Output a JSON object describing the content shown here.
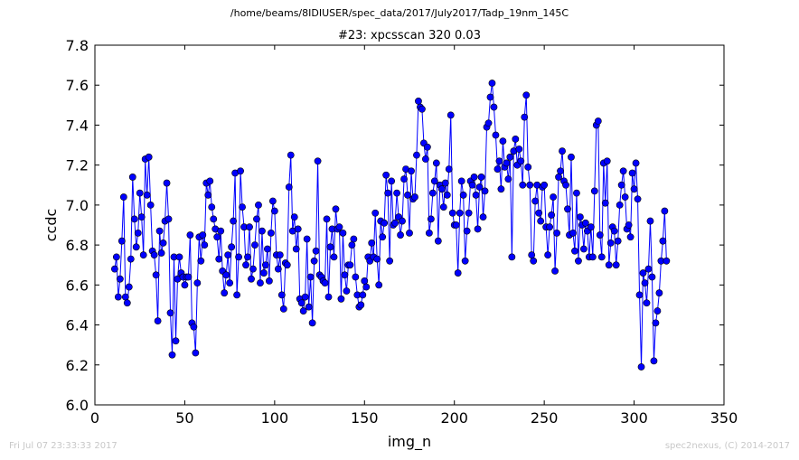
{
  "suptitle": "/home/beams/8IDIUSER/spec_data/2017/July2017/Tadp_19nm_145C",
  "footer": {
    "left": "Fri Jul 07 23:33:33 2017",
    "right": "spec2nexus, (C) 2014-2017"
  },
  "colors": {
    "series": "#0000ff",
    "axes": "#000000",
    "footer": "#c8c8c8"
  },
  "chart_data": {
    "type": "line",
    "title": "#23: xpcsscan 320 0.03",
    "xlabel": "img_n",
    "ylabel": "ccdc",
    "xlim": [
      0,
      350
    ],
    "ylim": [
      6.0,
      7.8
    ],
    "xticks": [
      "0",
      "50",
      "100",
      "150",
      "200",
      "250",
      "300",
      "350"
    ],
    "yticks": [
      "6.0",
      "6.2",
      "6.4",
      "6.6",
      "6.8",
      "7.0",
      "7.2",
      "7.4",
      "7.6",
      "7.8"
    ],
    "grid": false,
    "marker": "circle",
    "x_start": 11,
    "x_step": 1,
    "series": [
      {
        "y": [
          6.68,
          6.74,
          6.54,
          6.63,
          6.82,
          7.04,
          6.54,
          6.51,
          6.59,
          6.73,
          7.14,
          6.93,
          6.79,
          6.86,
          7.06,
          6.94,
          6.75,
          7.23,
          7.05,
          7.24,
          7.0,
          6.77,
          6.75,
          6.65,
          6.42,
          6.87,
          6.76,
          6.81,
          6.92,
          7.11,
          6.93,
          6.46,
          6.25,
          6.74,
          6.32,
          6.63,
          6.74,
          6.66,
          6.64,
          6.6,
          6.64,
          6.64,
          6.85,
          6.41,
          6.39,
          6.26,
          6.61,
          6.84,
          6.72,
          6.85,
          6.8,
          7.11,
          7.05,
          7.12,
          6.99,
          6.93,
          6.88,
          6.84,
          6.73,
          6.87,
          6.67,
          6.56,
          6.65,
          6.75,
          6.61,
          6.79,
          6.92,
          7.16,
          6.55,
          6.74,
          7.17,
          6.99,
          6.89,
          6.7,
          6.74,
          6.89,
          6.63,
          6.68,
          6.8,
          6.93,
          7.0,
          6.61,
          6.87,
          6.66,
          6.7,
          6.78,
          6.62,
          6.86,
          7.02,
          6.97,
          6.75,
          6.68,
          6.75,
          6.55,
          6.48,
          6.71,
          6.7,
          7.09,
          7.25,
          6.87,
          6.94,
          6.78,
          6.88,
          6.53,
          6.51,
          6.47,
          6.54,
          6.83,
          6.49,
          6.64,
          6.41,
          6.72,
          6.77,
          7.22,
          6.65,
          6.64,
          6.62,
          6.61,
          6.93,
          6.54,
          6.79,
          6.88,
          6.74,
          6.98,
          6.88,
          6.89,
          6.53,
          6.86,
          6.65,
          6.57,
          6.7,
          6.7,
          6.8,
          6.83,
          6.64,
          6.55,
          6.49,
          6.5,
          6.55,
          6.62,
          6.59,
          6.74,
          6.72,
          6.81,
          6.74,
          6.96,
          6.73,
          6.6,
          6.92,
          6.84,
          6.91,
          7.15,
          7.06,
          6.72,
          7.12,
          6.9,
          6.91,
          7.06,
          6.94,
          6.85,
          6.92,
          7.13,
          7.18,
          7.05,
          6.86,
          7.17,
          7.03,
          7.04,
          7.25,
          7.52,
          7.49,
          7.48,
          7.31,
          7.23,
          7.29,
          6.86,
          6.93,
          7.06,
          7.12,
          7.21,
          6.82,
          7.1,
          7.08,
          6.99,
          7.11,
          7.05,
          7.18,
          7.45,
          6.96,
          6.9,
          6.9,
          6.66,
          6.96,
          7.12,
          7.05,
          6.72,
          6.87,
          6.96,
          7.12,
          7.1,
          7.14,
          7.05,
          6.88,
          7.09,
          7.14,
          6.94,
          7.07,
          7.39,
          7.41,
          7.54,
          7.61,
          7.49,
          7.35,
          7.18,
          7.22,
          7.08,
          7.32,
          7.19,
          7.21,
          7.13,
          7.24,
          6.74,
          7.27,
          7.33,
          7.2,
          7.28,
          7.22,
          7.1,
          7.44,
          7.55,
          7.19,
          7.1,
          6.75,
          6.72,
          7.02,
          7.1,
          6.96,
          6.92,
          7.09,
          7.1,
          6.89,
          6.75,
          6.89,
          6.95,
          7.04,
          6.67,
          6.86,
          7.14,
          7.17,
          7.27,
          7.12,
          7.1,
          6.98,
          6.85,
          7.24,
          6.86,
          6.77,
          7.06,
          6.72,
          6.94,
          6.9,
          6.78,
          6.91,
          6.87,
          6.74,
          6.89,
          6.74,
          7.07,
          7.4,
          7.42,
          6.85,
          6.74,
          7.21,
          7.01,
          7.22,
          6.7,
          6.81,
          6.89,
          6.87,
          6.7,
          6.82,
          7.0,
          7.1,
          7.17,
          7.04,
          6.88,
          6.9,
          6.84,
          7.16,
          7.08,
          7.21,
          7.03,
          6.55,
          6.19,
          6.66,
          6.61,
          6.51,
          6.68,
          6.92,
          6.64,
          6.22,
          6.41,
          6.47,
          6.56,
          6.72,
          6.82,
          6.97,
          6.72
        ]
      }
    ]
  }
}
